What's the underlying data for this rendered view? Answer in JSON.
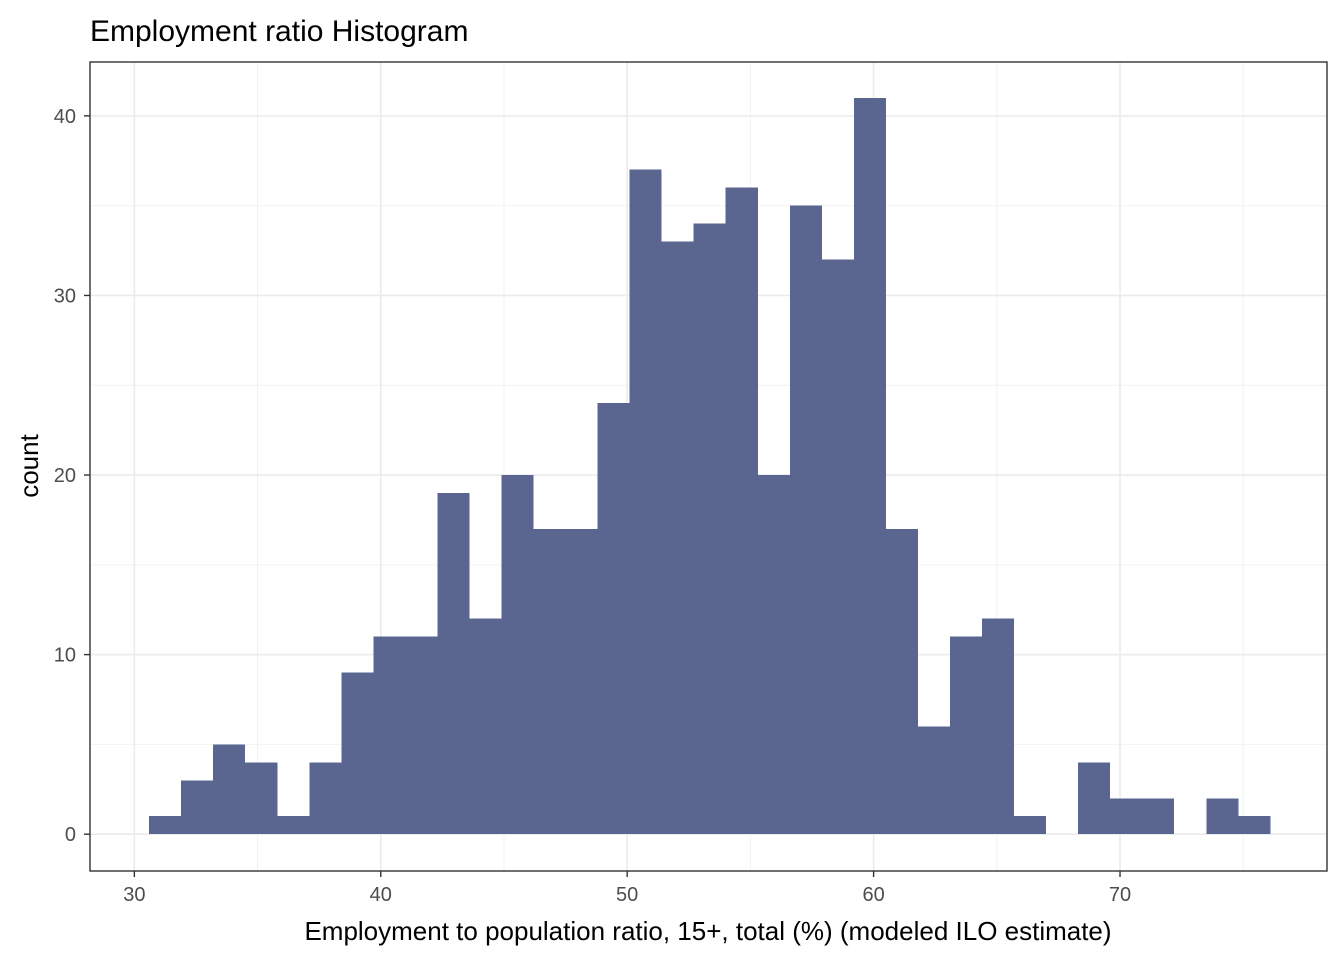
{
  "chart_data": {
    "type": "histogram",
    "title": "Employment ratio Histogram",
    "xlabel": "Employment to population ratio, 15+, total (%) (modeled ILO estimate)",
    "ylabel": "count",
    "xlim": [
      28.2,
      78.4
    ],
    "ylim": [
      -2.05,
      43.0
    ],
    "x_ticks": [
      30,
      40,
      50,
      60,
      70
    ],
    "y_ticks": [
      0,
      10,
      20,
      30,
      40
    ],
    "x_minor": [
      35,
      45,
      55,
      65,
      75
    ],
    "y_minor": [
      5,
      15,
      25,
      35
    ],
    "bin_width": 1.3,
    "bins": [
      {
        "x0": 30.6,
        "x1": 31.9,
        "count": 1
      },
      {
        "x0": 31.9,
        "x1": 33.2,
        "count": 3
      },
      {
        "x0": 33.2,
        "x1": 34.5,
        "count": 5
      },
      {
        "x0": 34.5,
        "x1": 35.8,
        "count": 4
      },
      {
        "x0": 35.8,
        "x1": 37.1,
        "count": 1
      },
      {
        "x0": 37.1,
        "x1": 38.4,
        "count": 4
      },
      {
        "x0": 38.4,
        "x1": 39.7,
        "count": 9
      },
      {
        "x0": 39.7,
        "x1": 41.0,
        "count": 11
      },
      {
        "x0": 41.0,
        "x1": 42.3,
        "count": 11
      },
      {
        "x0": 42.3,
        "x1": 43.6,
        "count": 19
      },
      {
        "x0": 43.6,
        "x1": 44.9,
        "count": 12
      },
      {
        "x0": 44.9,
        "x1": 46.2,
        "count": 20
      },
      {
        "x0": 46.2,
        "x1": 47.5,
        "count": 17
      },
      {
        "x0": 47.5,
        "x1": 48.8,
        "count": 17
      },
      {
        "x0": 48.8,
        "x1": 50.1,
        "count": 24
      },
      {
        "x0": 50.1,
        "x1": 51.4,
        "count": 37
      },
      {
        "x0": 51.4,
        "x1": 52.7,
        "count": 33
      },
      {
        "x0": 52.7,
        "x1": 54.0,
        "count": 34
      },
      {
        "x0": 54.0,
        "x1": 55.3,
        "count": 36
      },
      {
        "x0": 55.3,
        "x1": 56.6,
        "count": 20
      },
      {
        "x0": 56.6,
        "x1": 57.9,
        "count": 35
      },
      {
        "x0": 57.9,
        "x1": 59.2,
        "count": 32
      },
      {
        "x0": 59.2,
        "x1": 60.5,
        "count": 41
      },
      {
        "x0": 60.5,
        "x1": 61.8,
        "count": 17
      },
      {
        "x0": 61.8,
        "x1": 63.1,
        "count": 6
      },
      {
        "x0": 63.1,
        "x1": 64.4,
        "count": 11
      },
      {
        "x0": 64.4,
        "x1": 65.7,
        "count": 12
      },
      {
        "x0": 65.7,
        "x1": 67.0,
        "count": 1
      },
      {
        "x0": 67.0,
        "x1": 68.3,
        "count": 0
      },
      {
        "x0": 68.3,
        "x1": 69.6,
        "count": 4
      },
      {
        "x0": 69.6,
        "x1": 70.9,
        "count": 2
      },
      {
        "x0": 70.9,
        "x1": 72.2,
        "count": 2
      },
      {
        "x0": 72.2,
        "x1": 73.5,
        "count": 0
      },
      {
        "x0": 73.5,
        "x1": 74.8,
        "count": 2
      },
      {
        "x0": 74.8,
        "x1": 76.1,
        "count": 1
      }
    ],
    "bar_color": "#5a6690",
    "grid": true,
    "legend": "none"
  }
}
